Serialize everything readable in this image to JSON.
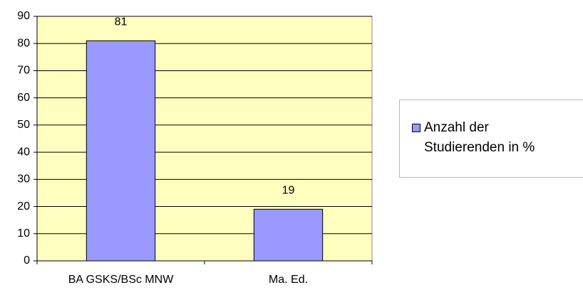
{
  "chart_data": {
    "type": "bar",
    "categories": [
      "BA GSKS/BSc MNW",
      "Ma. Ed."
    ],
    "series": [
      {
        "name": "Anzahl der Studierenden in %",
        "color": "#9999ff",
        "values": [
          81,
          19
        ]
      }
    ],
    "ylim": [
      0,
      90
    ],
    "yticks": [
      0,
      10,
      20,
      30,
      40,
      50,
      60,
      70,
      80,
      90
    ],
    "grid": true,
    "legend": "right",
    "plot_background": "#ffffc0"
  }
}
